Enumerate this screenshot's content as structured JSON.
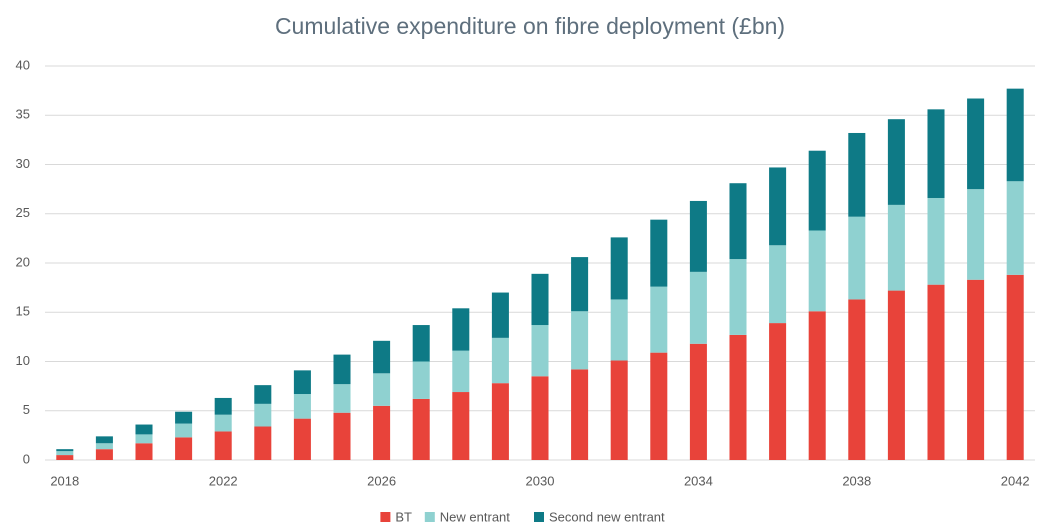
{
  "chart_data": {
    "type": "stacked_bar",
    "title": "Cumulative expenditure on fibre deployment (£bn)",
    "categories": [
      "2018",
      null,
      null,
      null,
      "2022",
      null,
      null,
      null,
      "2026",
      null,
      null,
      null,
      "2030",
      null,
      null,
      null,
      "2034",
      null,
      null,
      null,
      "2038",
      null,
      null,
      null,
      "2042"
    ],
    "series": [
      {
        "name": "BT",
        "color": "#e8433a",
        "values": [
          0.5,
          1.1,
          1.7,
          2.3,
          2.9,
          3.4,
          4.2,
          4.8,
          5.5,
          6.2,
          6.9,
          7.8,
          8.5,
          9.2,
          10.1,
          10.9,
          11.8,
          12.7,
          13.9,
          15.1,
          16.3,
          17.2,
          17.8,
          18.3,
          18.8
        ]
      },
      {
        "name": "New entrant",
        "color": "#8fd1d0",
        "values": [
          0.4,
          0.6,
          0.9,
          1.4,
          1.7,
          2.3,
          2.5,
          2.9,
          3.3,
          3.8,
          4.2,
          4.6,
          5.2,
          5.9,
          6.2,
          6.7,
          7.3,
          7.7,
          7.9,
          8.2,
          8.4,
          8.7,
          8.8,
          9.2,
          9.5
        ]
      },
      {
        "name": "Second new entrant",
        "color": "#0e7a86",
        "values": [
          0.2,
          0.7,
          1.0,
          1.2,
          1.7,
          1.9,
          2.4,
          3.0,
          3.3,
          3.7,
          4.3,
          4.6,
          5.2,
          5.5,
          6.3,
          6.8,
          7.2,
          7.7,
          7.9,
          8.1,
          8.5,
          8.7,
          9.0,
          9.2,
          9.4
        ]
      }
    ],
    "ylim": [
      0,
      40
    ],
    "yticks": [
      0,
      5,
      10,
      15,
      20,
      25,
      30,
      35,
      40
    ],
    "grid": true,
    "legend": "bottom"
  }
}
